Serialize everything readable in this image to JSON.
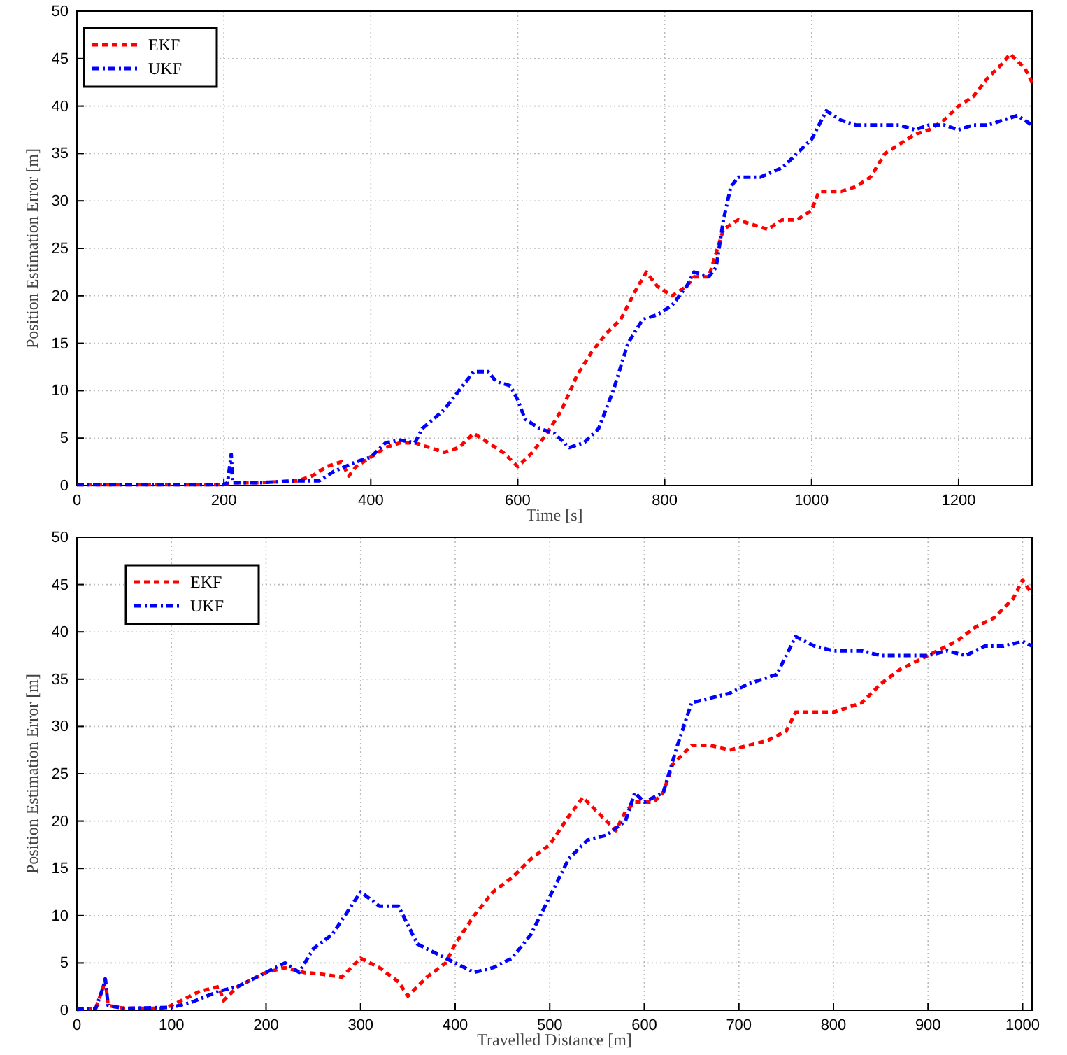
{
  "chart_data": [
    {
      "type": "line",
      "xlabel": "Time [s]",
      "ylabel": "Position Estimation Error [m]",
      "xlim": [
        0,
        1300
      ],
      "ylim": [
        0,
        50
      ],
      "xticks": [
        0,
        200,
        400,
        600,
        800,
        1000,
        1200
      ],
      "yticks": [
        0,
        5,
        10,
        15,
        20,
        25,
        30,
        35,
        40,
        45,
        50
      ],
      "grid": true,
      "legend": "top left",
      "series": [
        {
          "name": "EKF",
          "color": "#ff0000",
          "line_style": "dashed",
          "x": [
            0,
            100,
            200,
            210,
            250,
            300,
            320,
            340,
            360,
            370,
            380,
            400,
            420,
            440,
            460,
            480,
            500,
            520,
            540,
            560,
            580,
            600,
            620,
            640,
            660,
            680,
            700,
            720,
            740,
            760,
            775,
            790,
            810,
            830,
            840,
            860,
            880,
            900,
            920,
            940,
            960,
            980,
            1000,
            1010,
            1040,
            1060,
            1080,
            1100,
            1120,
            1140,
            1160,
            1180,
            1200,
            1220,
            1240,
            1260,
            1270,
            1290,
            1300
          ],
          "values": [
            0.1,
            0.1,
            0.1,
            0.3,
            0.3,
            0.5,
            1,
            2,
            2.5,
            1,
            2,
            3,
            4,
            4.5,
            4.5,
            4,
            3.5,
            4,
            5.5,
            4.5,
            3.5,
            2,
            3.5,
            5.5,
            8,
            11.5,
            14,
            16,
            17.5,
            20.5,
            22.5,
            21,
            20,
            21,
            22,
            22,
            27,
            28,
            27.5,
            27,
            28,
            28,
            29,
            31,
            31,
            31.5,
            32.5,
            35,
            36,
            37,
            37.5,
            38.5,
            40,
            41,
            43,
            44.5,
            45.5,
            44,
            42.5
          ]
        },
        {
          "name": "UKF",
          "color": "#0000ff",
          "line_style": "dashdot",
          "x": [
            0,
            200,
            205,
            210,
            212,
            250,
            300,
            330,
            350,
            380,
            400,
            420,
            440,
            460,
            470,
            500,
            520,
            540,
            560,
            570,
            590,
            600,
            610,
            630,
            650,
            670,
            690,
            710,
            730,
            750,
            770,
            790,
            810,
            830,
            840,
            860,
            870,
            880,
            890,
            900,
            930,
            960,
            980,
            1000,
            1010,
            1020,
            1040,
            1060,
            1080,
            1100,
            1120,
            1140,
            1160,
            1180,
            1200,
            1220,
            1240,
            1260,
            1280,
            1300
          ],
          "values": [
            0.1,
            0.1,
            0.3,
            3.3,
            0.3,
            0.3,
            0.5,
            0.5,
            1.5,
            2.5,
            3,
            4.5,
            4.8,
            4.5,
            6,
            8,
            10,
            12,
            12,
            11,
            10.5,
            9,
            7,
            6,
            5.5,
            4,
            4.5,
            6,
            10,
            15,
            17.5,
            18,
            19,
            21,
            22.5,
            22,
            23,
            28,
            31.5,
            32.5,
            32.5,
            33.5,
            35,
            36.5,
            38,
            39.5,
            38.5,
            38,
            38,
            38,
            38,
            37.5,
            38,
            38,
            37.5,
            38,
            38,
            38.5,
            39,
            38
          ]
        }
      ]
    },
    {
      "type": "line",
      "xlabel": "Travelled Distance [m]",
      "ylabel": "Position Estimation Error [m]",
      "xlim": [
        0,
        1010
      ],
      "ylim": [
        0,
        50
      ],
      "xticks": [
        0,
        100,
        200,
        300,
        400,
        500,
        600,
        700,
        800,
        900,
        1000
      ],
      "yticks": [
        0,
        5,
        10,
        15,
        20,
        25,
        30,
        35,
        40,
        45,
        50
      ],
      "grid": true,
      "legend": "top left",
      "series": [
        {
          "name": "EKF",
          "color": "#ff0000",
          "line_style": "dashed",
          "x": [
            0,
            20,
            28,
            30,
            33,
            50,
            90,
            100,
            110,
            130,
            150,
            155,
            170,
            200,
            220,
            240,
            260,
            280,
            300,
            320,
            340,
            350,
            370,
            390,
            400,
            420,
            440,
            460,
            480,
            500,
            520,
            535,
            550,
            570,
            580,
            590,
            610,
            620,
            630,
            650,
            670,
            690,
            710,
            730,
            750,
            760,
            780,
            800,
            830,
            850,
            870,
            890,
            910,
            930,
            950,
            970,
            990,
            1000,
            1010
          ],
          "values": [
            0.1,
            0.2,
            2.5,
            3.3,
            0.5,
            0.2,
            0.2,
            0.5,
            1,
            2,
            2.5,
            1,
            2.5,
            4,
            4.5,
            4,
            3.8,
            3.5,
            5.5,
            4.5,
            3,
            1.5,
            3.5,
            5,
            7,
            10,
            12.5,
            14,
            16,
            17.5,
            20.5,
            22.5,
            21,
            19,
            21,
            22,
            22,
            23,
            26,
            28,
            28,
            27.5,
            28,
            28.5,
            29.5,
            31.5,
            31.5,
            31.5,
            32.5,
            34.5,
            36,
            37,
            38,
            39,
            40.5,
            41.5,
            43.5,
            45.5,
            44
          ]
        },
        {
          "name": "UKF",
          "color": "#0000ff",
          "line_style": "dashdot",
          "x": [
            0,
            20,
            28,
            30,
            33,
            50,
            100,
            120,
            150,
            170,
            200,
            220,
            235,
            250,
            270,
            290,
            300,
            320,
            340,
            360,
            380,
            400,
            420,
            440,
            460,
            480,
            500,
            520,
            540,
            560,
            580,
            590,
            600,
            620,
            635,
            650,
            670,
            690,
            710,
            740,
            760,
            780,
            800,
            830,
            850,
            880,
            900,
            920,
            940,
            960,
            980,
            1000,
            1010
          ],
          "values": [
            0.1,
            0.2,
            2.5,
            3.3,
            0.5,
            0.2,
            0.3,
            0.8,
            2,
            2.5,
            4,
            5,
            4,
            6.5,
            8,
            11,
            12.5,
            11,
            11,
            7,
            6,
            5,
            4,
            4.5,
            5.5,
            8,
            12,
            16,
            18,
            18.5,
            20,
            23,
            22,
            23,
            28,
            32.5,
            33,
            33.5,
            34.5,
            35.5,
            39.5,
            38.5,
            38,
            38,
            37.5,
            37.5,
            37.5,
            38,
            37.5,
            38.5,
            38.5,
            39,
            38.5
          ]
        }
      ]
    }
  ]
}
